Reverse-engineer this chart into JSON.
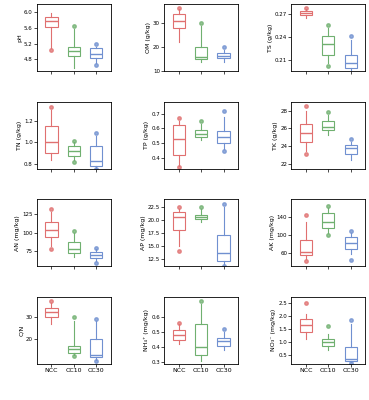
{
  "panels": [
    {
      "label": "pH",
      "ylabel": "pH",
      "ylim": [
        4.5,
        6.2
      ],
      "yticks": [
        4.8,
        5.2,
        5.6,
        6.0
      ],
      "groups": {
        "NCC": {
          "whislo": 5.1,
          "q1": 5.62,
          "med": 5.76,
          "q3": 5.87,
          "whishi": 5.97,
          "fliers": [
            5.05
          ]
        },
        "CC10": {
          "whislo": 4.58,
          "q1": 4.88,
          "med": 5.02,
          "q3": 5.12,
          "whishi": 5.58,
          "fliers": [
            5.65
          ]
        },
        "CC30": {
          "whislo": 4.72,
          "q1": 4.84,
          "med": 4.94,
          "q3": 5.08,
          "whishi": 5.12,
          "fliers": [
            4.65,
            5.18
          ]
        }
      }
    },
    {
      "label": "OM (g/kg)",
      "ylabel": "OM (g/kg)",
      "ylim": [
        10,
        38
      ],
      "yticks": [
        10,
        20,
        30
      ],
      "groups": {
        "NCC": {
          "whislo": 22,
          "q1": 28,
          "med": 31,
          "q3": 34,
          "whishi": 36,
          "fliers": [
            36.5
          ]
        },
        "CC10": {
          "whislo": 14,
          "q1": 15,
          "med": 16,
          "q3": 20,
          "whishi": 29,
          "fliers": [
            30
          ]
        },
        "CC30": {
          "whislo": 14,
          "q1": 15.5,
          "med": 16.5,
          "q3": 17.5,
          "whishi": 19,
          "fliers": [
            20
          ]
        }
      }
    },
    {
      "label": "TS (g/kg)",
      "ylabel": "TS (g/kg)",
      "ylim": [
        0.195,
        0.283
      ],
      "yticks": [
        0.21,
        0.24,
        0.27
      ],
      "groups": {
        "NCC": {
          "whislo": 0.265,
          "q1": 0.268,
          "med": 0.271,
          "q3": 0.274,
          "whishi": 0.276,
          "fliers": [
            0.278
          ]
        },
        "CC10": {
          "whislo": 0.206,
          "q1": 0.216,
          "med": 0.231,
          "q3": 0.241,
          "whishi": 0.251,
          "fliers": [
            0.202,
            0.256
          ]
        },
        "CC30": {
          "whislo": 0.197,
          "q1": 0.199,
          "med": 0.206,
          "q3": 0.216,
          "whishi": 0.236,
          "fliers": [
            0.241
          ]
        }
      }
    },
    {
      "label": "TN (g/kg)",
      "ylabel": "TN (g/kg)",
      "ylim": [
        0.75,
        1.38
      ],
      "yticks": [
        0.8,
        1.0,
        1.2
      ],
      "groups": {
        "NCC": {
          "whislo": 0.83,
          "q1": 0.9,
          "med": 1.0,
          "q3": 1.15,
          "whishi": 1.3,
          "fliers": [
            1.33
          ]
        },
        "CC10": {
          "whislo": 0.83,
          "q1": 0.87,
          "med": 0.92,
          "q3": 0.96,
          "whishi": 1.0,
          "fliers": [
            0.81,
            1.01
          ]
        },
        "CC30": {
          "whislo": 0.76,
          "q1": 0.78,
          "med": 0.82,
          "q3": 0.96,
          "whishi": 1.06,
          "fliers": [
            0.75,
            1.09
          ]
        }
      }
    },
    {
      "label": "TP (g/kg)",
      "ylabel": "TP (g/kg)",
      "ylim": [
        0.33,
        0.78
      ],
      "yticks": [
        0.4,
        0.5,
        0.6,
        0.7
      ],
      "groups": {
        "NCC": {
          "whislo": 0.35,
          "q1": 0.42,
          "med": 0.53,
          "q3": 0.62,
          "whishi": 0.65,
          "fliers": [
            0.34,
            0.67
          ]
        },
        "CC10": {
          "whislo": 0.52,
          "q1": 0.54,
          "med": 0.56,
          "q3": 0.59,
          "whishi": 0.63,
          "fliers": [
            0.65
          ]
        },
        "CC30": {
          "whislo": 0.46,
          "q1": 0.5,
          "med": 0.54,
          "q3": 0.58,
          "whishi": 0.68,
          "fliers": [
            0.45,
            0.72
          ]
        }
      }
    },
    {
      "label": "TK (g/kg)",
      "ylabel": "TK (g/kg)",
      "ylim": [
        21.5,
        29
      ],
      "yticks": [
        22,
        24,
        26,
        28
      ],
      "groups": {
        "NCC": {
          "whislo": 23.5,
          "q1": 24.5,
          "med": 25.5,
          "q3": 26.5,
          "whishi": 28,
          "fliers": [
            23.2,
            28.5
          ]
        },
        "CC10": {
          "whislo": 25.3,
          "q1": 25.8,
          "med": 26.2,
          "q3": 26.8,
          "whishi": 27.5,
          "fliers": [
            27.8
          ]
        },
        "CC30": {
          "whislo": 22.5,
          "q1": 23.2,
          "med": 23.8,
          "q3": 24.2,
          "whishi": 24.5,
          "fliers": [
            24.8
          ]
        }
      }
    },
    {
      "label": "AN (mg/kg)",
      "ylabel": "AN (mg/kg)",
      "ylim": [
        55,
        145
      ],
      "yticks": [
        75,
        100,
        125
      ],
      "groups": {
        "NCC": {
          "whislo": 82,
          "q1": 94,
          "med": 104,
          "q3": 115,
          "whishi": 128,
          "fliers": [
            78,
            132
          ]
        },
        "CC10": {
          "whislo": 68,
          "q1": 73,
          "med": 78,
          "q3": 88,
          "whishi": 100,
          "fliers": [
            102
          ]
        },
        "CC30": {
          "whislo": 62,
          "q1": 66,
          "med": 70,
          "q3": 74,
          "whishi": 78,
          "fliers": [
            59,
            80
          ]
        }
      }
    },
    {
      "label": "AP (mg/kg)",
      "ylabel": "AP (mg/kg)",
      "ylim": [
        11,
        24
      ],
      "yticks": [
        12.5,
        15.0,
        17.5,
        20.0,
        22.5
      ],
      "groups": {
        "NCC": {
          "whislo": 15,
          "q1": 18,
          "med": 20.5,
          "q3": 21.5,
          "whishi": 22,
          "fliers": [
            14,
            22.5
          ]
        },
        "CC10": {
          "whislo": 19.5,
          "q1": 20.2,
          "med": 20.5,
          "q3": 21,
          "whishi": 22,
          "fliers": [
            22.5
          ]
        },
        "CC30": {
          "whislo": 11.5,
          "q1": 12,
          "med": 13.5,
          "q3": 17,
          "whishi": 22.5,
          "fliers": [
            11,
            23
          ]
        }
      }
    },
    {
      "label": "AK (mg/kg)",
      "ylabel": "AK (mg/kg)",
      "ylim": [
        30,
        180
      ],
      "yticks": [
        60,
        100,
        140
      ],
      "groups": {
        "NCC": {
          "whislo": 47,
          "q1": 55,
          "med": 62,
          "q3": 90,
          "whishi": 130,
          "fliers": [
            42,
            145
          ]
        },
        "CC10": {
          "whislo": 105,
          "q1": 115,
          "med": 130,
          "q3": 148,
          "whishi": 160,
          "fliers": [
            100,
            165
          ]
        },
        "CC30": {
          "whislo": 58,
          "q1": 68,
          "med": 82,
          "q3": 95,
          "whishi": 105,
          "fliers": [
            45,
            108
          ]
        }
      }
    },
    {
      "label": "C/N",
      "ylabel": "C/N",
      "ylim": [
        9,
        39
      ],
      "yticks": [
        20,
        30
      ],
      "groups": {
        "NCC": {
          "whislo": 27,
          "q1": 30,
          "med": 32,
          "q3": 34,
          "whishi": 36,
          "fliers": [
            37
          ]
        },
        "CC10": {
          "whislo": 13,
          "q1": 14,
          "med": 15.5,
          "q3": 17,
          "whishi": 28,
          "fliers": [
            12.5,
            30
          ]
        },
        "CC30": {
          "whislo": 11,
          "q1": 12,
          "med": 13,
          "q3": 20,
          "whishi": 28,
          "fliers": [
            10.5,
            29
          ]
        }
      }
    },
    {
      "label": "NH₄⁺ (mg/kg)",
      "ylabel": "NH₄⁺ (mg/kg)",
      "ylim": [
        0.29,
        0.73
      ],
      "yticks": [
        0.3,
        0.4,
        0.5,
        0.6
      ],
      "groups": {
        "NCC": {
          "whislo": 0.42,
          "q1": 0.45,
          "med": 0.48,
          "q3": 0.51,
          "whishi": 0.55,
          "fliers": [
            0.56
          ]
        },
        "CC10": {
          "whislo": 0.31,
          "q1": 0.35,
          "med": 0.4,
          "q3": 0.55,
          "whishi": 0.68,
          "fliers": [
            0.7
          ]
        },
        "CC30": {
          "whislo": 0.38,
          "q1": 0.41,
          "med": 0.44,
          "q3": 0.46,
          "whishi": 0.5,
          "fliers": [
            0.52
          ]
        }
      }
    },
    {
      "label": "NO₃⁻ (mg/kg)",
      "ylabel": "NO₃⁻ (mg/kg)",
      "ylim": [
        0.15,
        2.75
      ],
      "yticks": [
        0.5,
        1.0,
        1.5,
        2.0,
        2.5
      ],
      "groups": {
        "NCC": {
          "whislo": 1.1,
          "q1": 1.4,
          "med": 1.65,
          "q3": 1.9,
          "whishi": 2.1,
          "fliers": [
            2.5
          ]
        },
        "CC10": {
          "whislo": 0.7,
          "q1": 0.85,
          "med": 1.0,
          "q3": 1.1,
          "whishi": 1.3,
          "fliers": [
            1.6
          ]
        },
        "CC30": {
          "whislo": 0.22,
          "q1": 0.25,
          "med": 0.35,
          "q3": 0.8,
          "whishi": 1.7,
          "fliers": [
            0.2,
            1.85
          ]
        }
      }
    }
  ],
  "colors": {
    "NCC": "#e07070",
    "CC10": "#70b070",
    "CC30": "#7090d0"
  },
  "group_names": [
    "NCC",
    "CC10",
    "CC30"
  ],
  "flier_marker": "o",
  "flier_size": 2.5,
  "box_width": 0.55,
  "fig_bg": "#f0f0f0"
}
